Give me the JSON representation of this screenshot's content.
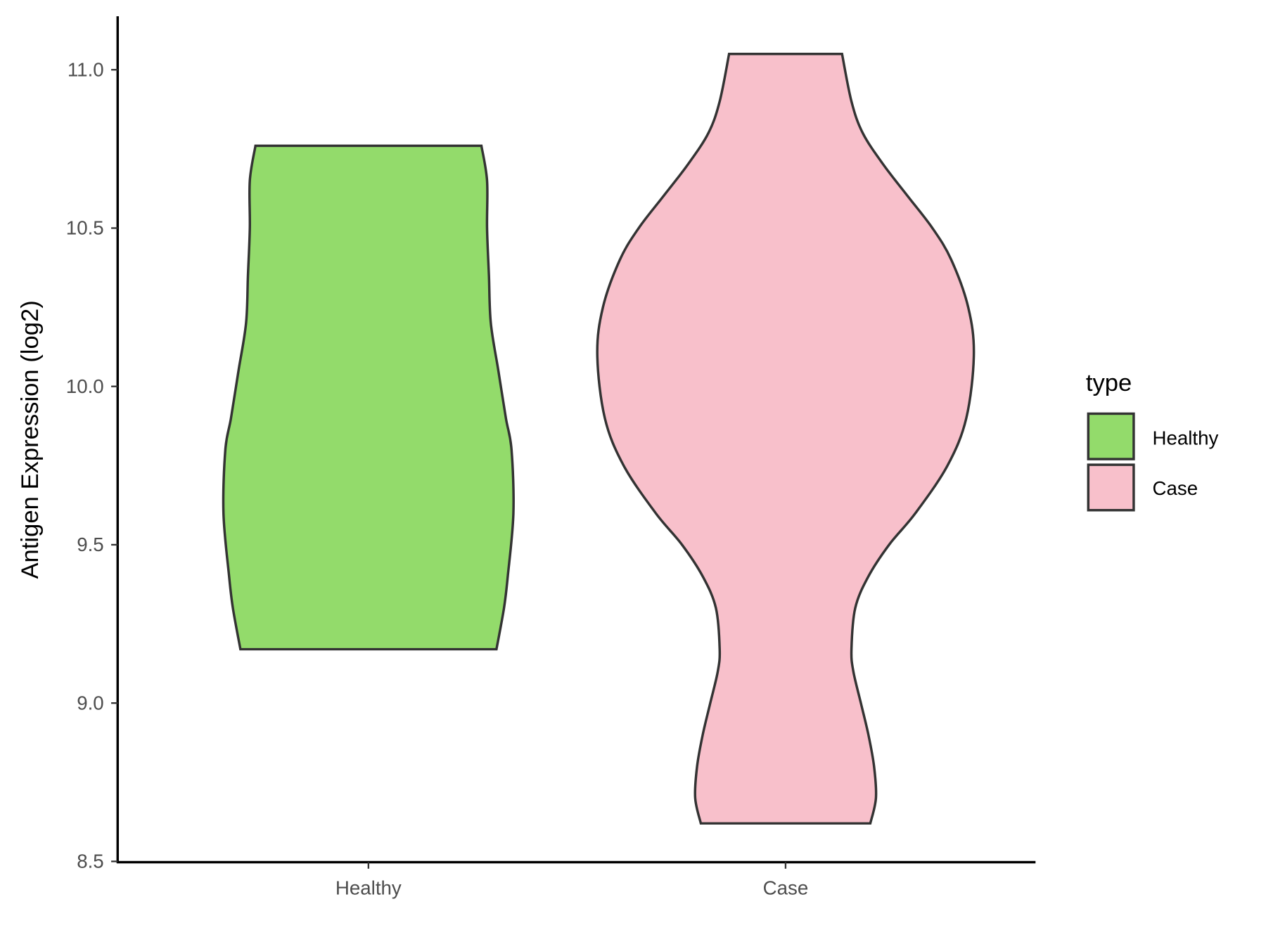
{
  "chart_data": {
    "type": "violin",
    "title": "",
    "xlabel": "",
    "ylabel": "Antigen Expression (log2)",
    "ylim": [
      8.5,
      11.17
    ],
    "yticks": [
      "8.5",
      "9.0",
      "9.5",
      "10.0",
      "10.5",
      "11.0"
    ],
    "categories": [
      "Healthy",
      "Case"
    ],
    "grid": false,
    "legend": {
      "title": "type",
      "position": "right",
      "entries": [
        "Healthy",
        "Case"
      ]
    },
    "series": [
      {
        "name": "Healthy",
        "color": "#93DB6B",
        "min": 9.17,
        "max": 10.76,
        "density_profile": [
          [
            9.17,
            0.68
          ],
          [
            9.3,
            0.72
          ],
          [
            9.4,
            0.74
          ],
          [
            9.6,
            0.77
          ],
          [
            9.8,
            0.76
          ],
          [
            9.9,
            0.73
          ],
          [
            10.05,
            0.69
          ],
          [
            10.2,
            0.65
          ],
          [
            10.35,
            0.64
          ],
          [
            10.5,
            0.63
          ],
          [
            10.65,
            0.63
          ],
          [
            10.76,
            0.6
          ]
        ]
      },
      {
        "name": "Case",
        "color": "#F8C0CB",
        "min": 8.62,
        "max": 11.05,
        "density_profile": [
          [
            8.62,
            0.45
          ],
          [
            8.7,
            0.48
          ],
          [
            8.8,
            0.47
          ],
          [
            8.9,
            0.44
          ],
          [
            9.0,
            0.4
          ],
          [
            9.1,
            0.36
          ],
          [
            9.17,
            0.35
          ],
          [
            9.3,
            0.37
          ],
          [
            9.4,
            0.44
          ],
          [
            9.5,
            0.55
          ],
          [
            9.6,
            0.69
          ],
          [
            9.75,
            0.86
          ],
          [
            9.9,
            0.96
          ],
          [
            10.1,
            1.0
          ],
          [
            10.25,
            0.97
          ],
          [
            10.4,
            0.88
          ],
          [
            10.5,
            0.78
          ],
          [
            10.6,
            0.65
          ],
          [
            10.7,
            0.52
          ],
          [
            10.8,
            0.41
          ],
          [
            10.9,
            0.35
          ],
          [
            11.05,
            0.3
          ]
        ]
      }
    ],
    "outline_color": "#333333"
  }
}
